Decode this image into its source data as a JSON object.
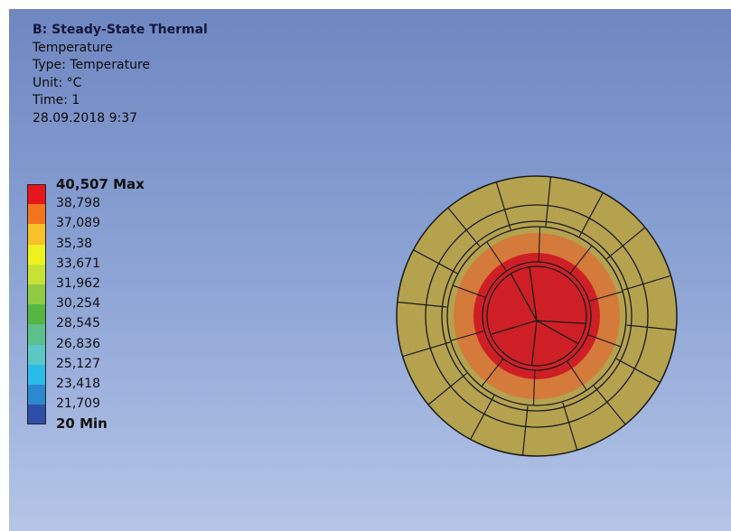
{
  "info": {
    "title": "B: Steady-State Thermal",
    "result": "Temperature",
    "type": "Type: Temperature",
    "unit": "Unit: °C",
    "time": "Time: 1",
    "date": "28.09.2018 9:37"
  },
  "legend": {
    "max_label": "40,507 Max",
    "min_label": "20 Min",
    "ticks": [
      "38,798",
      "37,089",
      "35,38",
      "33,671",
      "31,962",
      "30,254",
      "28,545",
      "26,836",
      "25,127",
      "23,418",
      "21,709"
    ],
    "colors": [
      "#e5171c",
      "#f2741f",
      "#f8c12a",
      "#eef11d",
      "#c8e136",
      "#8fcc44",
      "#55b643",
      "#5cc08c",
      "#5cc8c6",
      "#29bce8",
      "#2b89d0",
      "#2f4ea8"
    ]
  },
  "model": {
    "colors": {
      "outer": "#b5a24f",
      "mid": "#d47a3a",
      "core": "#cf1f26",
      "mesh": "#1a1a1a"
    }
  }
}
